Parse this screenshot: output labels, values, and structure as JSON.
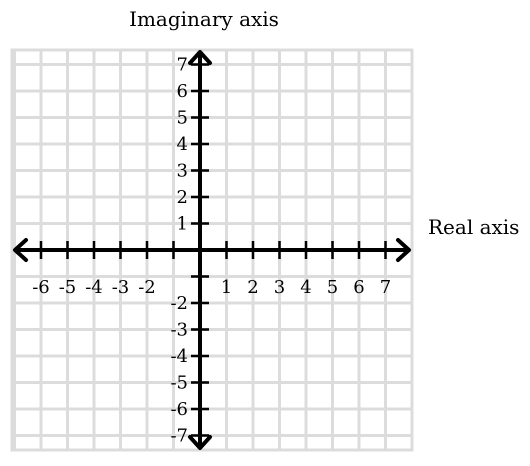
{
  "chart_data": {
    "type": "scatter",
    "title": "",
    "xlabel": "Real axis",
    "ylabel": "Imaginary axis",
    "xlim": [
      -7,
      8
    ],
    "ylim": [
      -8,
      8
    ],
    "grid": true,
    "x_ticks": [
      "-6",
      "-5",
      "-4",
      "-3",
      "-2",
      "1",
      "2",
      "3",
      "4",
      "5",
      "6",
      "7"
    ],
    "y_ticks_positive": [
      "7",
      "6",
      "5",
      "4",
      "3",
      "2",
      "1"
    ],
    "y_ticks_negative": [
      "-2",
      "-3",
      "-4",
      "-5",
      "-6",
      "-7"
    ],
    "series": [],
    "colors": {
      "grid": "#dcdcdc",
      "axes": "#000000"
    }
  }
}
